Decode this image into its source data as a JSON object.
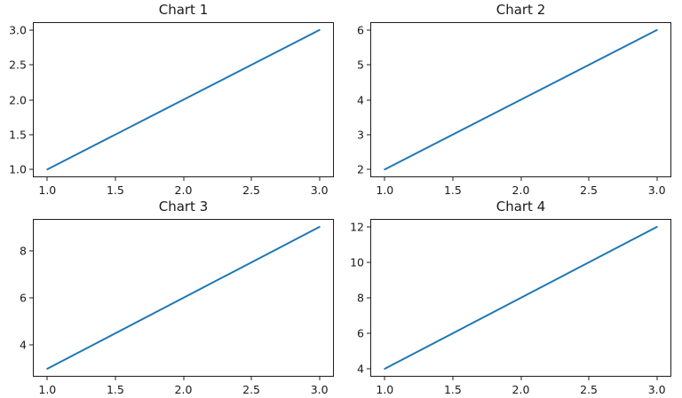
{
  "figure": {
    "background": "#ffffff",
    "grid": "2x2"
  },
  "style": {
    "line_color": "#1f77b4",
    "spine_color": "#1c1c1c",
    "text_color": "#1a1a1a"
  },
  "chart_data": [
    {
      "type": "line",
      "title": "Chart 1",
      "x": [
        1,
        2,
        3
      ],
      "y": [
        1,
        2,
        3
      ],
      "xlim": [
        0.9,
        3.1
      ],
      "ylim": [
        0.9,
        3.1
      ],
      "xticks": {
        "values": [
          1.0,
          1.5,
          2.0,
          2.5,
          3.0
        ],
        "labels": [
          "1.0",
          "1.5",
          "2.0",
          "2.5",
          "3.0"
        ]
      },
      "yticks": {
        "values": [
          1.0,
          1.5,
          2.0,
          2.5,
          3.0
        ],
        "labels": [
          "1.0",
          "1.5",
          "2.0",
          "2.5",
          "3.0"
        ]
      },
      "xlabel": "",
      "ylabel": "",
      "grid": false,
      "legend": null,
      "line_color": "#1f77b4"
    },
    {
      "type": "line",
      "title": "Chart 2",
      "x": [
        1,
        2,
        3
      ],
      "y": [
        2,
        4,
        6
      ],
      "xlim": [
        0.9,
        3.1
      ],
      "ylim": [
        1.8,
        6.2
      ],
      "xticks": {
        "values": [
          1.0,
          1.5,
          2.0,
          2.5,
          3.0
        ],
        "labels": [
          "1.0",
          "1.5",
          "2.0",
          "2.5",
          "3.0"
        ]
      },
      "yticks": {
        "values": [
          2,
          3,
          4,
          5,
          6
        ],
        "labels": [
          "2",
          "3",
          "4",
          "5",
          "6"
        ]
      },
      "xlabel": "",
      "ylabel": "",
      "grid": false,
      "legend": null,
      "line_color": "#1f77b4"
    },
    {
      "type": "line",
      "title": "Chart 3",
      "x": [
        1,
        2,
        3
      ],
      "y": [
        3,
        6,
        9
      ],
      "xlim": [
        0.9,
        3.1
      ],
      "ylim": [
        2.7,
        9.3
      ],
      "xticks": {
        "values": [
          1.0,
          1.5,
          2.0,
          2.5,
          3.0
        ],
        "labels": [
          "1.0",
          "1.5",
          "2.0",
          "2.5",
          "3.0"
        ]
      },
      "yticks": {
        "values": [
          4,
          6,
          8
        ],
        "labels": [
          "4",
          "6",
          "8"
        ]
      },
      "xlabel": "",
      "ylabel": "",
      "grid": false,
      "legend": null,
      "line_color": "#1f77b4"
    },
    {
      "type": "line",
      "title": "Chart 4",
      "x": [
        1,
        2,
        3
      ],
      "y": [
        4,
        8,
        12
      ],
      "xlim": [
        0.9,
        3.1
      ],
      "ylim": [
        3.6,
        12.4
      ],
      "xticks": {
        "values": [
          1.0,
          1.5,
          2.0,
          2.5,
          3.0
        ],
        "labels": [
          "1.0",
          "1.5",
          "2.0",
          "2.5",
          "3.0"
        ]
      },
      "yticks": {
        "values": [
          4,
          6,
          8,
          10,
          12
        ],
        "labels": [
          "4",
          "6",
          "8",
          "10",
          "12"
        ]
      },
      "xlabel": "",
      "ylabel": "",
      "grid": false,
      "legend": null,
      "line_color": "#1f77b4"
    }
  ]
}
